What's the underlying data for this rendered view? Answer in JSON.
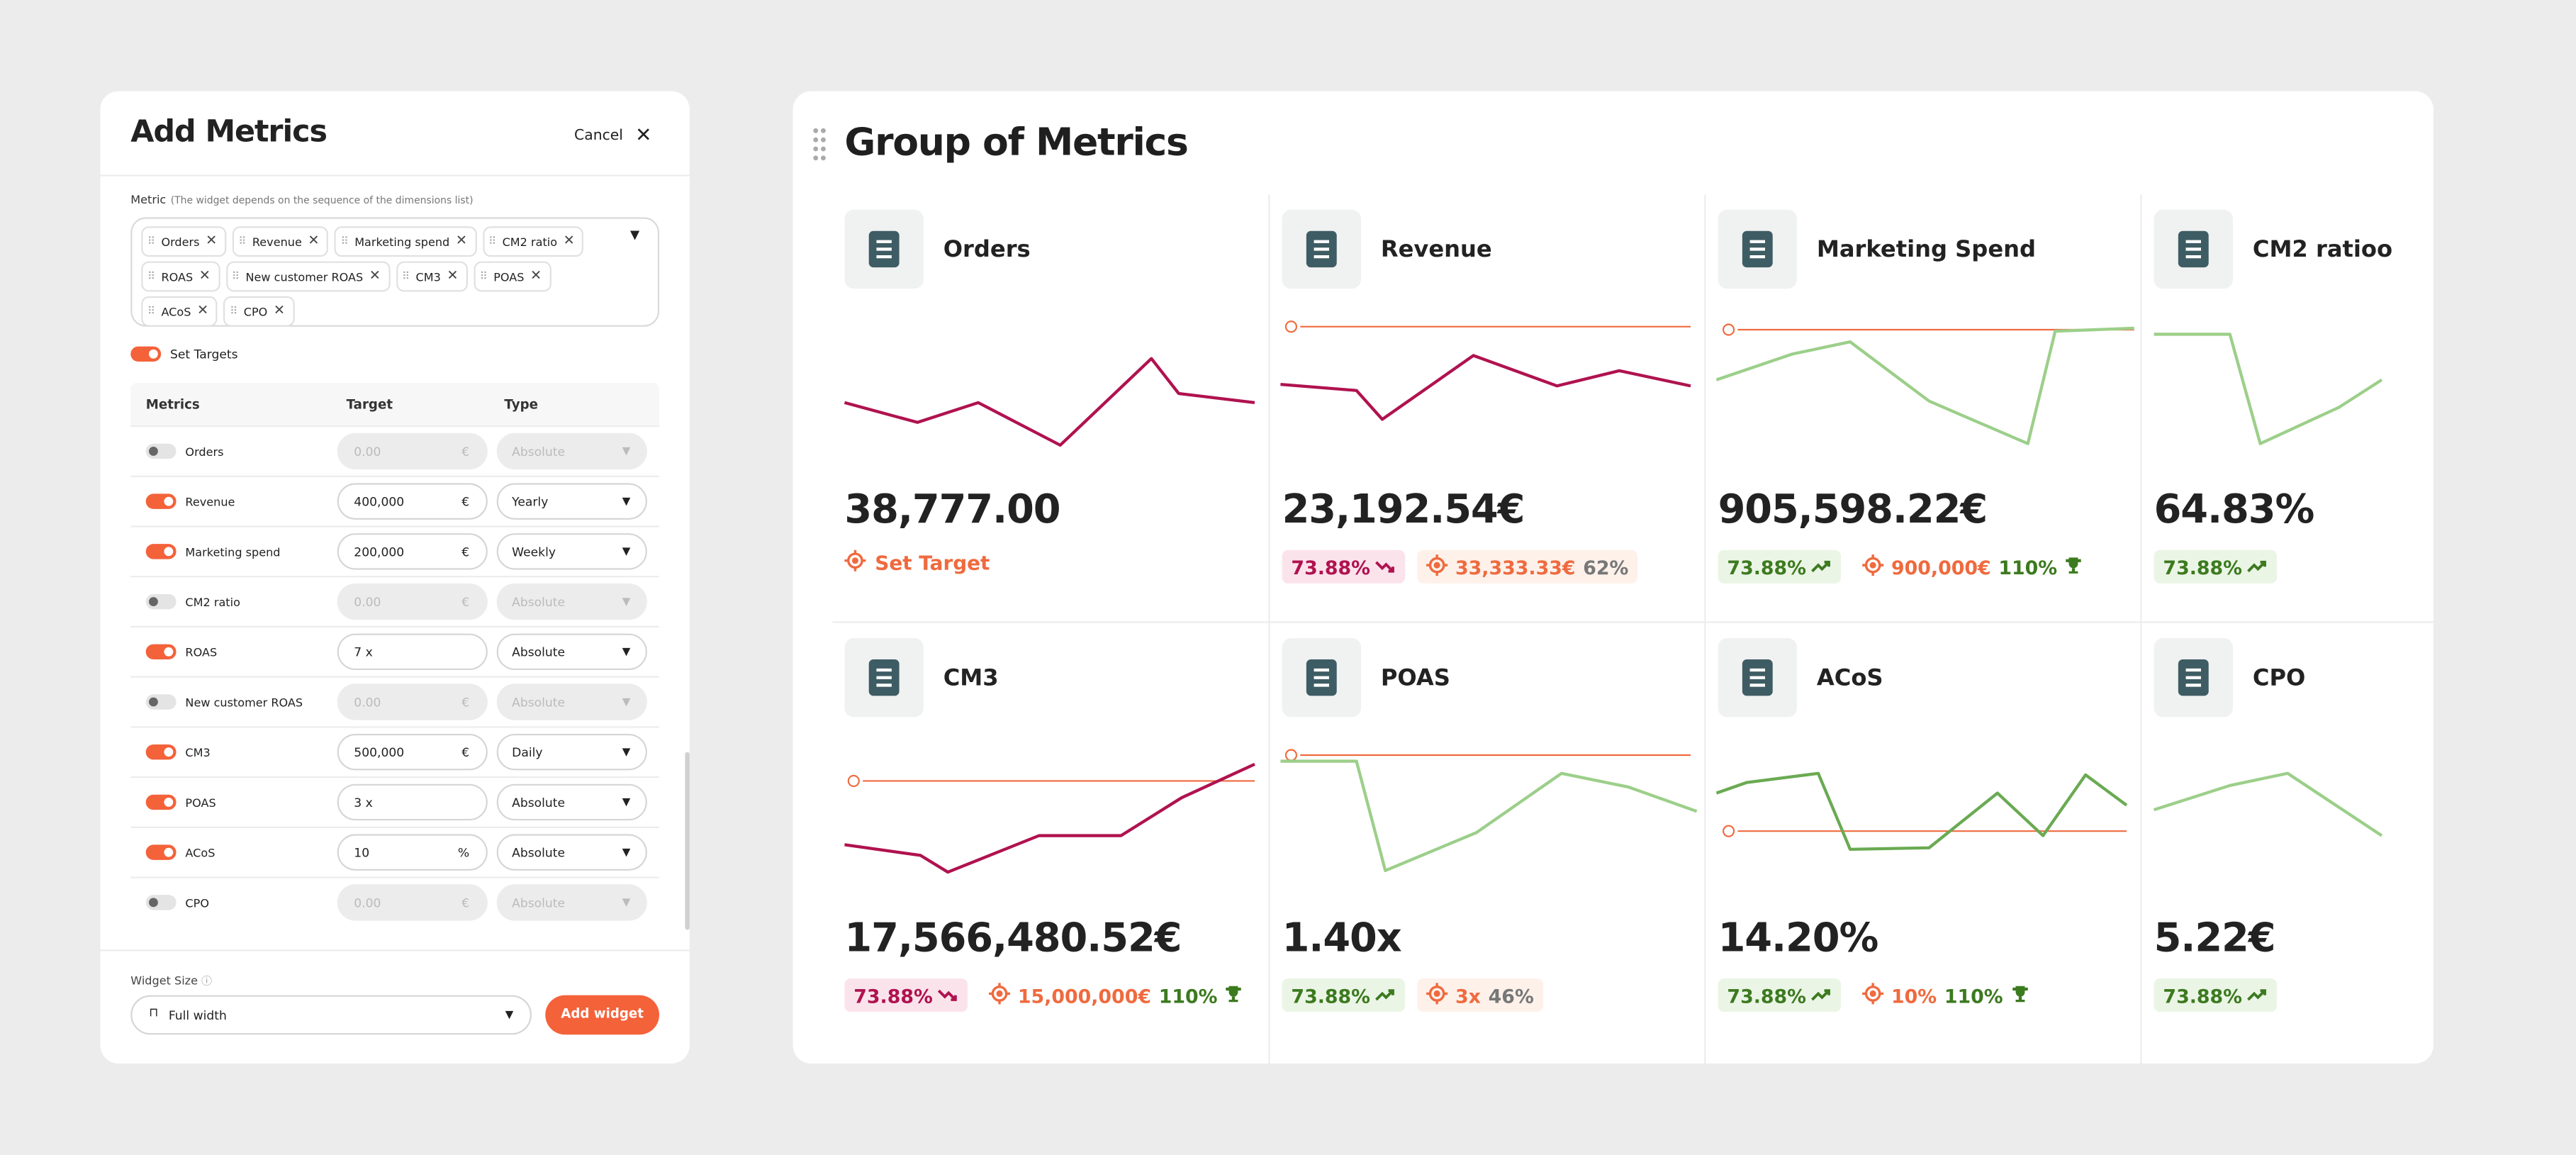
{
  "panel": {
    "title": "Add Metrics",
    "cancel": "Cancel",
    "metric_label": "Metric",
    "metric_hint": "(The widget depends on the sequence of the dimensions list)",
    "chips": [
      "Orders",
      "Revenue",
      "Marketing spend",
      "CM2 ratio",
      "ROAS",
      "New customer ROAS",
      "CM3",
      "POAS",
      "ACoS",
      "CPO"
    ],
    "set_targets": "Set Targets",
    "set_targets_on": true,
    "columns": [
      "Metrics",
      "Target",
      "Type"
    ],
    "rows": [
      {
        "name": "Orders",
        "enabled": false,
        "target": "0.00",
        "unit": "€",
        "type": "Absolute"
      },
      {
        "name": "Revenue",
        "enabled": true,
        "target": "400,000",
        "unit": "€",
        "type": "Yearly"
      },
      {
        "name": "Marketing spend",
        "enabled": true,
        "target": "200,000",
        "unit": "€",
        "type": "Weekly"
      },
      {
        "name": "CM2 ratio",
        "enabled": false,
        "target": "0.00",
        "unit": "€",
        "type": "Absolute"
      },
      {
        "name": "ROAS",
        "enabled": true,
        "target": "7 x",
        "type": "Absolute"
      },
      {
        "name": "New customer ROAS",
        "enabled": false,
        "target": "0.00",
        "unit": "€",
        "type": "Absolute"
      },
      {
        "name": "CM3",
        "enabled": true,
        "target": "500,000",
        "unit": "€",
        "type": "Daily"
      },
      {
        "name": "POAS",
        "enabled": true,
        "target": "3 x",
        "type": "Absolute"
      },
      {
        "name": "ACoS",
        "enabled": true,
        "target": "10",
        "unit": "%",
        "type": "Absolute"
      },
      {
        "name": "CPO",
        "enabled": false,
        "target": "0.00",
        "unit": "€",
        "type": "Absolute"
      }
    ],
    "widget_size_label": "Widget Size",
    "widget_size": "Full width",
    "add_button": "Add widget"
  },
  "dashboard": {
    "title": "Group of Metrics",
    "cards": [
      {
        "name": "Orders",
        "value": "38,777.00",
        "set_target": "Set Target"
      },
      {
        "name": "Revenue",
        "value": "23,192.54€",
        "badge": "73.88%",
        "trend": "down",
        "target": "33,333.33€",
        "pct": "62%",
        "goal_met": false
      },
      {
        "name": "Marketing Spend",
        "value": "905,598.22€",
        "badge": "73.88%",
        "trend": "up",
        "target": "900,000€",
        "pct": "110%",
        "goal_met": true
      },
      {
        "name": "CM2 ratioo",
        "value": "64.83%",
        "badge": "73.88%",
        "trend": "up"
      },
      {
        "name": "CM3",
        "value": "17,566,480.52€",
        "badge": "73.88%",
        "trend": "down",
        "target": "15,000,000€",
        "pct": "110%",
        "goal_met": true
      },
      {
        "name": "POAS",
        "value": "1.40x",
        "badge": "73.88%",
        "trend": "up",
        "target": "3x",
        "pct": "46%",
        "goal_met": false
      },
      {
        "name": "ACoS",
        "value": "14.20%",
        "badge": "73.88%",
        "trend": "up",
        "target": "10%",
        "pct": "110%",
        "goal_met": true
      },
      {
        "name": "CPO",
        "value": "5.22€",
        "badge": "73.88%",
        "trend": "up"
      }
    ]
  }
}
